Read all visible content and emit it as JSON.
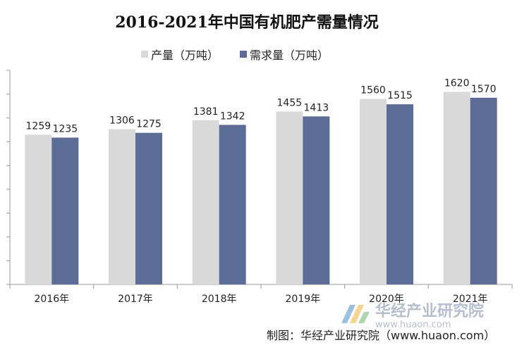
{
  "chart_data": {
    "type": "bar",
    "title": "2016-2021年中国有机肥产需量情况",
    "categories": [
      "2016年",
      "2017年",
      "2018年",
      "2019年",
      "2020年",
      "2021年"
    ],
    "series": [
      {
        "name": "产量（万吨）",
        "values": [
          1259,
          1306,
          1381,
          1455,
          1560,
          1620
        ],
        "color": "#d9d9d9"
      },
      {
        "name": "需求量（万吨）",
        "values": [
          1235,
          1275,
          1342,
          1413,
          1515,
          1570
        ],
        "color": "#5b6d96"
      }
    ],
    "ylim": [
      0,
      1800
    ],
    "grid": false,
    "legend_position": "top-center"
  },
  "credit": "制图：华经产业研究院（www.huaon.com）",
  "watermark": {
    "name": "华经产业研究院",
    "url": "www.huaon.com"
  }
}
